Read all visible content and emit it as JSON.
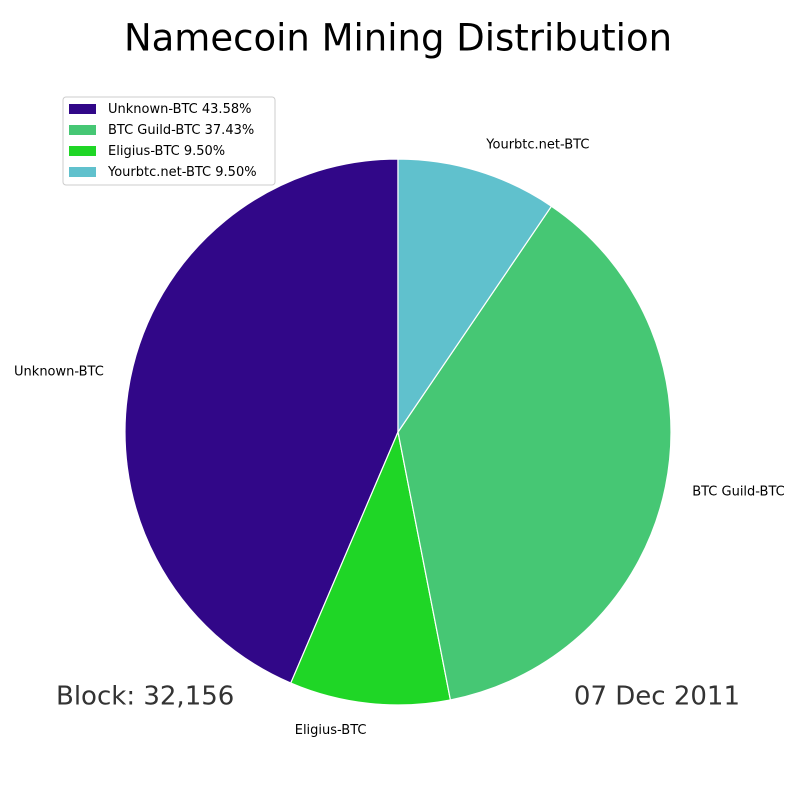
{
  "chart_data": {
    "type": "pie",
    "title": "Namecoin Mining Distribution",
    "categories": [
      "Unknown-BTC",
      "Eligius-BTC",
      "BTC Guild-BTC",
      "Yourbtc.net-BTC"
    ],
    "values": [
      43.58,
      9.5,
      37.43,
      9.5
    ],
    "value_labels": [
      "43.58%",
      "9.50%",
      "37.43%",
      "9.50%"
    ],
    "colors": [
      "#310788",
      "#1fd626",
      "#46c774",
      "#60c1cd"
    ],
    "start_angle": 90,
    "counterclockwise": true,
    "legend_order": [
      0,
      2,
      1,
      3
    ],
    "legend_position": "upper-left",
    "annotations": [
      "Block: 32,156",
      "07 Dec 2011"
    ]
  }
}
